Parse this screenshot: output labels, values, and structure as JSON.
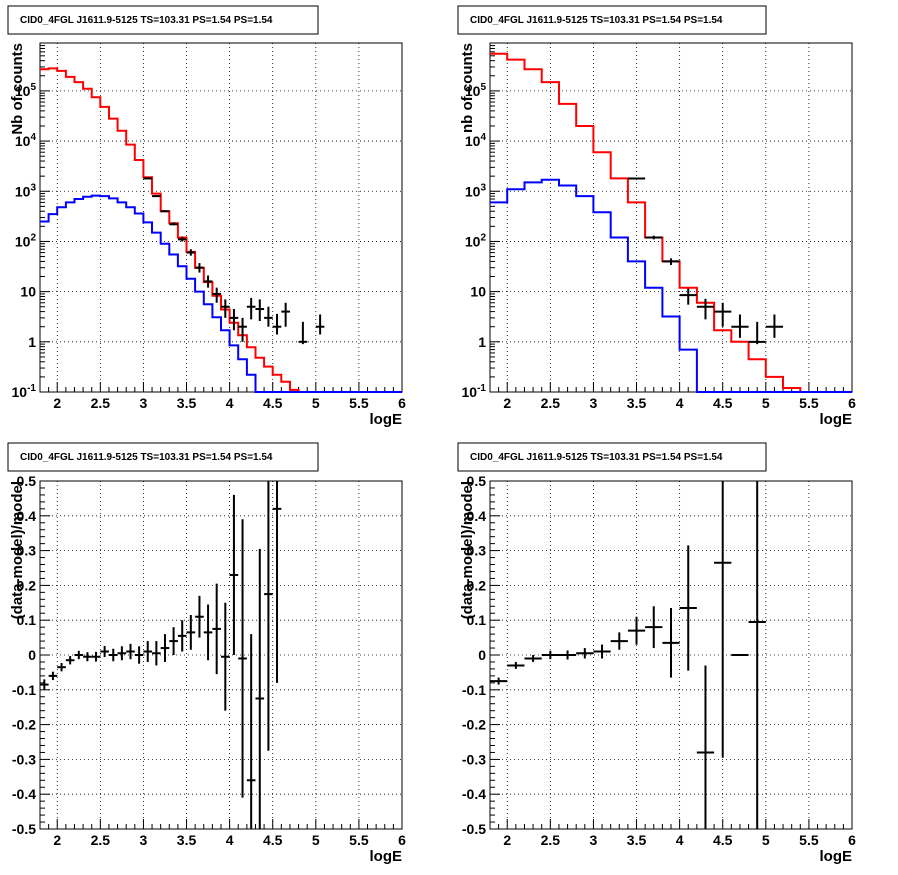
{
  "chart_data": [
    {
      "id": "top-left",
      "type": "line",
      "title": "CID0_4FGL J1611.9-5125 TS=103.31 PS=1.54 PS=1.54",
      "xlabel": "logE",
      "ylabel": "Nb of counts",
      "xlim": [
        1.8,
        6.0
      ],
      "ylim": [
        0.1,
        900000
      ],
      "yscale": "log",
      "grid": true,
      "x_ticks": [
        "2",
        "2.5",
        "3",
        "3.5",
        "4",
        "4.5",
        "5",
        "5.5",
        "6"
      ],
      "y_ticks": [
        "10^-1",
        "1",
        "10",
        "10^2",
        "10^3",
        "10^4",
        "10^5"
      ],
      "bin_edges": [
        1.8,
        1.9,
        2.0,
        2.1,
        2.2,
        2.3,
        2.4,
        2.5,
        2.6,
        2.7,
        2.8,
        2.9,
        3.0,
        3.1,
        3.2,
        3.3,
        3.4,
        3.5,
        3.6,
        3.7,
        3.8,
        3.9,
        4.0,
        4.1,
        4.2,
        4.3,
        4.4,
        4.5,
        4.6,
        4.7,
        4.8,
        4.9,
        5.0,
        5.1,
        5.2,
        5.3,
        5.4,
        5.5,
        5.6,
        5.7,
        5.8,
        5.9,
        6.0
      ],
      "series": [
        {
          "color": "#ff0000",
          "style": "step",
          "values": [
            270000,
            280000,
            250000,
            190000,
            150000,
            110000,
            75000,
            48000,
            28000,
            16000,
            8500,
            4200,
            1900,
            900,
            400,
            230,
            120,
            62,
            30,
            15.5,
            8.3,
            4.4,
            2.4,
            1.35,
            0.78,
            0.48,
            0.32,
            0.22,
            0.16,
            0.11,
            0.09,
            0.09,
            0.09,
            0.09,
            0.09,
            0.09,
            0.09,
            0.09,
            0.09,
            0.09,
            0.09,
            0.09
          ]
        },
        {
          "color": "#0000ff",
          "style": "step",
          "values": [
            250,
            350,
            480,
            600,
            700,
            780,
            820,
            800,
            720,
            600,
            480,
            360,
            240,
            150,
            90,
            55,
            32,
            18,
            10,
            5.6,
            3.1,
            1.7,
            0.85,
            0.45,
            0.22,
            0.09,
            0.09,
            0.09,
            0.09,
            0.09,
            0.09,
            0.09,
            0.09,
            0.09,
            0.09,
            0.09,
            0.09,
            0.09,
            0.09,
            0.09,
            0.09,
            0.09
          ]
        },
        {
          "color": "#000000",
          "style": "points",
          "x": [
            3.05,
            3.15,
            3.25,
            3.35,
            3.45,
            3.55,
            3.65,
            3.75,
            3.85,
            3.95,
            4.05,
            4.15,
            4.25,
            4.35,
            4.45,
            4.55,
            4.65,
            4.85,
            5.05
          ],
          "y": [
            1800,
            800,
            400,
            220,
            110,
            60,
            30,
            16,
            9,
            5,
            3,
            2,
            5,
            4.5,
            3,
            2,
            4,
            1,
            2
          ],
          "yerr_low": [
            1780,
            790,
            394,
            210,
            100,
            52,
            24,
            12,
            6,
            3,
            1.7,
            1,
            2.8,
            2.6,
            2,
            1.4,
            2,
            0.9,
            1.4
          ],
          "yerr_high": [
            1830,
            830,
            420,
            240,
            125,
            70,
            37,
            21,
            12,
            7,
            4.5,
            3,
            7.5,
            7,
            5,
            3.6,
            6,
            2.5,
            3.5
          ]
        }
      ]
    },
    {
      "id": "top-right",
      "type": "line",
      "title": "CID0_4FGL J1611.9-5125 TS=103.31 PS=1.54 PS=1.54",
      "xlabel": "logE",
      "ylabel": "nb of counts",
      "xlim": [
        1.8,
        6.0
      ],
      "ylim": [
        0.1,
        900000
      ],
      "yscale": "log",
      "grid": true,
      "x_ticks": [
        "2",
        "2.5",
        "3",
        "3.5",
        "4",
        "4.5",
        "5",
        "5.5",
        "6"
      ],
      "y_ticks": [
        "10^-1",
        "1",
        "10",
        "10^2",
        "10^3",
        "10^4",
        "10^5"
      ],
      "bin_edges": [
        1.8,
        2.0,
        2.2,
        2.4,
        2.6,
        2.8,
        3.0,
        3.2,
        3.4,
        3.6,
        3.8,
        4.0,
        4.2,
        4.4,
        4.6,
        4.8,
        5.0,
        5.2,
        5.4,
        5.6,
        5.8,
        6.0
      ],
      "series": [
        {
          "color": "#ff0000",
          "style": "step",
          "values": [
            550000,
            420000,
            270000,
            150000,
            55000,
            20000,
            6000,
            1800,
            600,
            120,
            40,
            12,
            6,
            1.7,
            1.0,
            0.45,
            0.2,
            0.12,
            0.09,
            0.09,
            0.09
          ]
        },
        {
          "color": "#0000ff",
          "style": "step",
          "values": [
            600,
            1100,
            1500,
            1700,
            1300,
            800,
            380,
            120,
            40,
            12,
            3.2,
            0.7,
            0.09,
            0.09,
            0.09,
            0.09,
            0.09,
            0.09,
            0.09,
            0.09,
            0.09
          ]
        },
        {
          "color": "#000000",
          "style": "points",
          "x": [
            3.5,
            3.7,
            3.9,
            4.1,
            4.3,
            4.5,
            4.7,
            4.9,
            5.1
          ],
          "y": [
            1800,
            120,
            40,
            8.5,
            5,
            4,
            2,
            1,
            2
          ],
          "yerr_low": [
            1760,
            110,
            34,
            5.5,
            2.8,
            2,
            1.2,
            0.9,
            1.2
          ],
          "yerr_high": [
            1850,
            130,
            46,
            11.5,
            7.2,
            6,
            3.5,
            2.5,
            3.5
          ]
        }
      ]
    },
    {
      "id": "bottom-left",
      "type": "scatter",
      "title": "CID0_4FGL J1611.9-5125 TS=103.31 PS=1.54 PS=1.54",
      "xlabel": "logE",
      "ylabel": "(data-model)/model",
      "xlim": [
        1.8,
        6.0
      ],
      "ylim": [
        -0.5,
        0.5
      ],
      "grid": true,
      "x_ticks": [
        "2",
        "2.5",
        "3",
        "3.5",
        "4",
        "4.5",
        "5",
        "5.5",
        "6"
      ],
      "y_ticks": [
        "-0.5",
        "-0.4",
        "-0.3",
        "-0.2",
        "-0.1",
        "0",
        "0.1",
        "0.2",
        "0.3",
        "0.4",
        "0.5"
      ],
      "series": [
        {
          "color": "#000000",
          "x": [
            1.85,
            1.95,
            2.05,
            2.15,
            2.25,
            2.35,
            2.45,
            2.55,
            2.65,
            2.75,
            2.85,
            2.95,
            3.05,
            3.15,
            3.25,
            3.35,
            3.45,
            3.55,
            3.65,
            3.75,
            3.85,
            3.95,
            4.05,
            4.15,
            4.25,
            4.35,
            4.45,
            4.55
          ],
          "y": [
            -0.085,
            -0.06,
            -0.035,
            -0.015,
            0.0,
            -0.005,
            -0.005,
            0.01,
            0.0,
            0.005,
            0.01,
            0.0,
            0.01,
            0.005,
            0.02,
            0.04,
            0.055,
            0.065,
            0.11,
            0.065,
            0.075,
            -0.005,
            0.23,
            -0.01,
            -0.36,
            -0.125,
            0.175,
            0.42
          ],
          "yerr": [
            0.015,
            0.012,
            0.012,
            0.012,
            0.012,
            0.013,
            0.014,
            0.016,
            0.018,
            0.02,
            0.022,
            0.025,
            0.03,
            0.035,
            0.04,
            0.04,
            0.045,
            0.05,
            0.06,
            0.08,
            0.13,
            0.155,
            0.23,
            0.4,
            0.42,
            0.43,
            0.45,
            0.5
          ]
        }
      ]
    },
    {
      "id": "bottom-right",
      "type": "scatter",
      "title": "CID0_4FGL J1611.9-5125 TS=103.31 PS=1.54 PS=1.54",
      "xlabel": "logE",
      "ylabel": "(data-model)/model",
      "xlim": [
        1.8,
        6.0
      ],
      "ylim": [
        -0.5,
        0.5
      ],
      "grid": true,
      "x_ticks": [
        "2",
        "2.5",
        "3",
        "3.5",
        "4",
        "4.5",
        "5",
        "5.5",
        "6"
      ],
      "y_ticks": [
        "-0.5",
        "-0.4",
        "-0.3",
        "-0.2",
        "-0.1",
        "0",
        "0.1",
        "0.2",
        "0.3",
        "0.4",
        "0.5"
      ],
      "series": [
        {
          "color": "#000000",
          "x": [
            1.9,
            2.1,
            2.3,
            2.5,
            2.7,
            2.9,
            3.1,
            3.3,
            3.5,
            3.7,
            3.9,
            4.1,
            4.3,
            4.5,
            4.7,
            4.9
          ],
          "y": [
            -0.075,
            -0.03,
            -0.01,
            0.0,
            0.0,
            0.005,
            0.01,
            0.04,
            0.07,
            0.08,
            0.035,
            0.135,
            -0.28,
            0.265,
            0.0,
            0.095
          ],
          "yerr": [
            0.01,
            0.01,
            0.01,
            0.012,
            0.013,
            0.015,
            0.02,
            0.025,
            0.04,
            0.06,
            0.1,
            0.18,
            0.25,
            0.56,
            0.0,
            0.6
          ]
        }
      ]
    }
  ]
}
